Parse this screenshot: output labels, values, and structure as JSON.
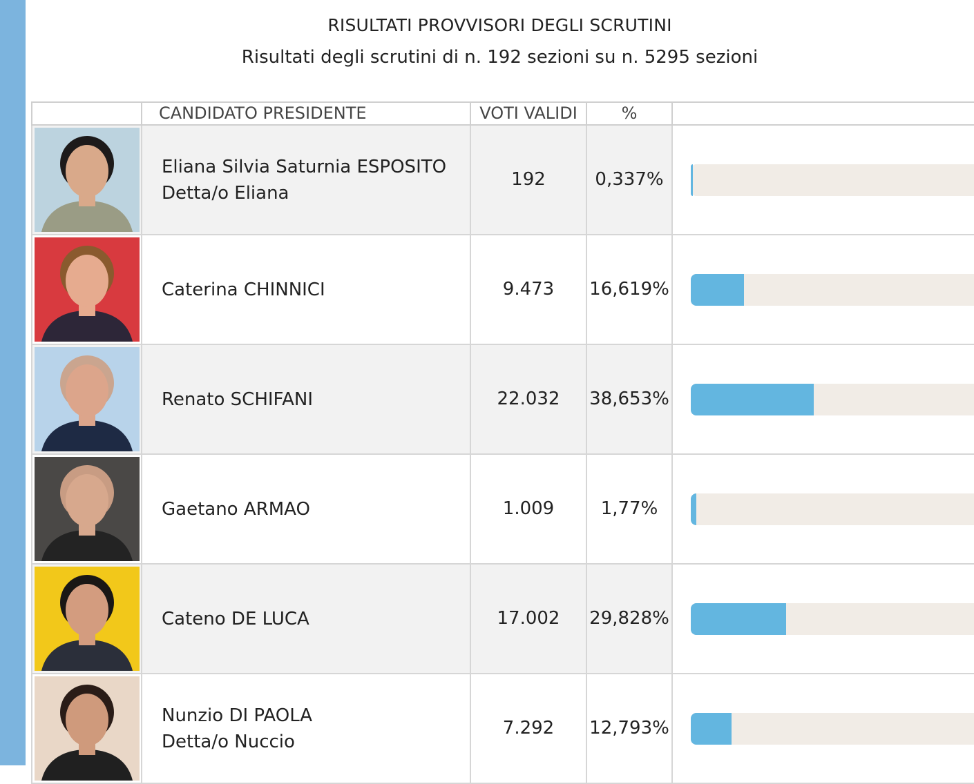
{
  "header": {
    "title": "RISULTATI PROVVISORI DEGLI SCRUTINI",
    "subtitle": "Risultati degli scrutini di n. 192 sezioni su n. 5295 sezioni"
  },
  "columns": {
    "photo": "",
    "candidate": "CANDIDATO PRESIDENTE",
    "votes": "VOTI VALIDI",
    "percent": "%"
  },
  "colors": {
    "accent_bar": "#63b6e0",
    "track": "#f1ece6",
    "side_strip": "#7cb4de"
  },
  "candidates": [
    {
      "line1": "Eliana Silvia Saturnia ESPOSITO",
      "line2": "Detta/o Eliana",
      "votes": "192",
      "percent": "0,337%",
      "share": 0.337,
      "photo_bg": "#bcd3df",
      "hair": "#1d1a1a",
      "skin": "#d9a98a",
      "shirt": "#9a9c85"
    },
    {
      "line1": "Caterina CHINNICI",
      "line2": "",
      "votes": "9.473",
      "percent": "16,619%",
      "share": 16.619,
      "photo_bg": "#d83a3f",
      "hair": "#8a5a2e",
      "skin": "#e6ab8f",
      "shirt": "#2d2638"
    },
    {
      "line1": "Renato SCHIFANI",
      "line2": "",
      "votes": "22.032",
      "percent": "38,653%",
      "share": 38.653,
      "photo_bg": "#b8d3ea",
      "hair": "#caa58f",
      "skin": "#dca58b",
      "shirt": "#1e2a44"
    },
    {
      "line1": "Gaetano ARMAO",
      "line2": "",
      "votes": "1.009",
      "percent": "1,77%",
      "share": 1.77,
      "photo_bg": "#4a4846",
      "hair": "#c89c83",
      "skin": "#d7a88d",
      "shirt": "#232323"
    },
    {
      "line1": "Cateno DE LUCA",
      "line2": "",
      "votes": "17.002",
      "percent": "29,828%",
      "share": 29.828,
      "photo_bg": "#f2c81a",
      "hair": "#1a1715",
      "skin": "#d39c7f",
      "shirt": "#2b2f3a"
    },
    {
      "line1": "Nunzio DI PAOLA",
      "line2": "Detta/o Nuccio",
      "votes": "7.292",
      "percent": "12,793%",
      "share": 12.793,
      "photo_bg": "#e9d7c7",
      "hair": "#2a1c17",
      "skin": "#cf9a7c",
      "shirt": "#202020"
    }
  ]
}
